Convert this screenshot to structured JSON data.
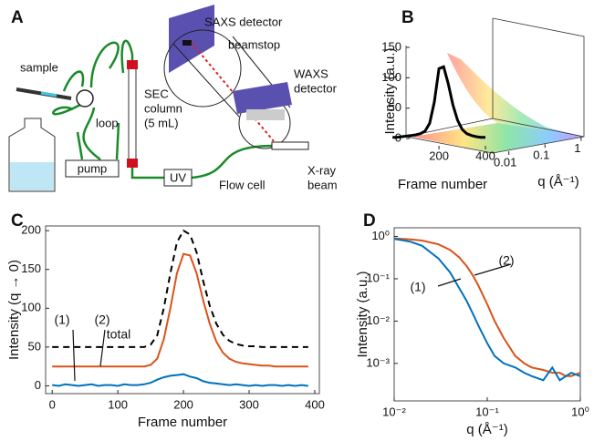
{
  "panel_labels": [
    "A",
    "B",
    "C",
    "D"
  ],
  "diagram": {
    "labels": {
      "sample": "sample",
      "loop": "loop",
      "sec_column": [
        "SEC",
        "column",
        "(5 mL)"
      ],
      "pump": "pump",
      "uv": "UV",
      "flow_cell": "Flow cell",
      "xray_beam": [
        "X-ray",
        "beam"
      ],
      "saxs_detector": "SAXS detector",
      "beamstop": "beamstop",
      "waxs_detector": [
        "WAXS",
        "detector"
      ]
    }
  },
  "chart_data": [
    {
      "type": "line3d",
      "x_label": "Frame number",
      "y_label": "Intensity (a.u.)",
      "z_label": "q (Å⁻¹)",
      "xlim": [
        -40,
        400
      ],
      "xticks": [
        200,
        400
      ],
      "ylim": [
        0,
        150
      ],
      "yticks": [
        0,
        50,
        100,
        150
      ],
      "zlim": [
        0.003,
        1.2
      ],
      "zticks": [
        0.01,
        0.1,
        1
      ],
      "x": [
        0,
        20,
        40,
        60,
        80,
        100,
        120,
        140,
        160,
        180,
        200,
        220,
        240,
        260,
        280,
        300,
        320,
        340,
        360,
        380,
        400
      ],
      "series": [
        {
          "color": "#000000",
          "values": [
            2,
            2,
            3,
            4,
            5,
            6,
            8,
            12,
            25,
            60,
            115,
            118,
            90,
            55,
            30,
            15,
            8,
            5,
            3,
            2,
            2
          ]
        }
      ]
    },
    {
      "type": "line",
      "x_label": "Frame number",
      "y_label": "Intensity (q → 0)",
      "xlim": [
        -10,
        407
      ],
      "xticks": [
        0,
        100,
        200,
        300,
        400
      ],
      "ylim": [
        -10,
        206
      ],
      "yticks": [
        0,
        50,
        100,
        150,
        200
      ],
      "x": [
        0,
        10,
        20,
        30,
        40,
        50,
        60,
        70,
        80,
        90,
        100,
        110,
        120,
        130,
        140,
        150,
        160,
        170,
        180,
        190,
        200,
        210,
        220,
        230,
        240,
        250,
        260,
        270,
        280,
        290,
        300,
        310,
        320,
        330,
        340,
        350,
        360,
        370,
        380,
        390
      ],
      "series": [
        {
          "name": "total",
          "color": "#000000",
          "line_style": "dashed",
          "values": [
            50,
            50,
            50,
            50,
            50,
            50,
            50,
            50,
            50,
            50,
            50,
            50,
            50,
            50,
            50,
            53,
            65,
            100,
            145,
            185,
            200,
            195,
            172,
            135,
            103,
            80,
            66,
            58,
            54,
            52,
            51,
            51,
            50,
            50,
            50,
            50,
            50,
            50,
            50,
            50
          ]
        },
        {
          "name": "(2)",
          "color": "#d95319",
          "line_style": "solid",
          "values": [
            25,
            25,
            25,
            25,
            25,
            25,
            25,
            25,
            25,
            25,
            25,
            25,
            25,
            25,
            25,
            27,
            35,
            60,
            100,
            145,
            170,
            168,
            145,
            110,
            80,
            57,
            43,
            35,
            31,
            29,
            28,
            27,
            26,
            26,
            25,
            25,
            25,
            25,
            25,
            25
          ]
        },
        {
          "name": "(1)",
          "color": "#0072bd",
          "line_style": "solid",
          "values": [
            1,
            0,
            2,
            1,
            0,
            1,
            2,
            0,
            1,
            1,
            0,
            2,
            1,
            1,
            2,
            4,
            8,
            11,
            13,
            14,
            15,
            12,
            10,
            6,
            4,
            3,
            2,
            1,
            2,
            1,
            0,
            1,
            0,
            1,
            1,
            0,
            1,
            0,
            1,
            0
          ]
        }
      ]
    },
    {
      "type": "line",
      "x_label": "q (Å⁻¹)",
      "y_label": "Intensity (a.u.)",
      "xscale": "log",
      "yscale": "log",
      "xlim": [
        0.01,
        1
      ],
      "xticks": [
        {
          "value": 0.01,
          "label": "10⁻²"
        },
        {
          "value": 0.1,
          "label": "10⁻¹"
        },
        {
          "value": 1,
          "label": "10⁰"
        }
      ],
      "ylim": [
        0.00013,
        1.6
      ],
      "yticks": [
        {
          "value": 0.001,
          "label": "10⁻³"
        },
        {
          "value": 0.01,
          "label": "10⁻²"
        },
        {
          "value": 0.1,
          "label": "10⁻¹"
        },
        {
          "value": 1,
          "label": "10⁰"
        }
      ],
      "x": [
        0.01,
        0.015,
        0.02,
        0.03,
        0.04,
        0.05,
        0.06,
        0.07,
        0.08,
        0.1,
        0.12,
        0.15,
        0.2,
        0.25,
        0.3,
        0.4,
        0.5,
        0.6,
        0.7,
        0.8,
        1.0
      ],
      "series": [
        {
          "name": "(2)",
          "color": "#d95319",
          "line_style": "solid",
          "values": [
            0.9,
            0.85,
            0.8,
            0.65,
            0.48,
            0.32,
            0.2,
            0.12,
            0.07,
            0.025,
            0.01,
            0.004,
            0.0015,
            0.001,
            0.0008,
            0.0007,
            0.0006,
            0.0006,
            0.0005,
            0.0005,
            0.0006
          ]
        },
        {
          "name": "(1)",
          "color": "#0072bd",
          "line_style": "solid",
          "values": [
            0.88,
            0.75,
            0.6,
            0.3,
            0.14,
            0.06,
            0.03,
            0.015,
            0.008,
            0.003,
            0.0015,
            0.001,
            0.0008,
            0.0006,
            0.0005,
            0.0004,
            0.0008,
            0.0004,
            0.0005,
            0.0006,
            0.0005
          ]
        }
      ]
    }
  ]
}
